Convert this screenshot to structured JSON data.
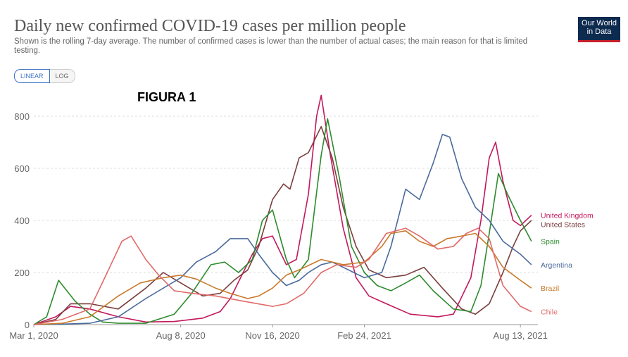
{
  "header": {
    "title": "Daily new confirmed COVID-19 cases per million people",
    "subtitle": "Shown is the rolling 7-day average. The number of confirmed cases is lower than the number of actual cases; the main reason for that is limited testing.",
    "logo_line1": "Our World",
    "logo_line2": "in Data"
  },
  "scale_toggle": {
    "linear_label": "LINEAR",
    "log_label": "LOG",
    "selected": "LINEAR"
  },
  "annotation": "FIGURA 1",
  "chart_data": {
    "type": "line",
    "title": "Daily new confirmed COVID-19 cases per million people",
    "xlabel": "",
    "ylabel": "",
    "ylim": [
      0,
      800
    ],
    "y_ticks": [
      0,
      200,
      400,
      600,
      800
    ],
    "x_tick_labels": [
      "Mar 1, 2020",
      "Aug 8, 2020",
      "Nov 16, 2020",
      "Feb 24, 2021",
      "Aug 13, 2021"
    ],
    "x_tick_dates": [
      "2020-03-01",
      "2020-08-08",
      "2020-11-16",
      "2021-02-24",
      "2021-08-13"
    ],
    "xlim": [
      "2020-03-01",
      "2021-09-01"
    ],
    "grid": "horizontal dashed",
    "legend": "right, labels at line ends",
    "series": [
      {
        "name": "United Kingdom",
        "color": "#c2185b",
        "dates": [
          "2020-03-01",
          "2020-03-25",
          "2020-04-10",
          "2020-05-01",
          "2020-06-01",
          "2020-07-01",
          "2020-08-01",
          "2020-09-01",
          "2020-09-20",
          "2020-10-01",
          "2020-10-15",
          "2020-10-25",
          "2020-11-05",
          "2020-11-16",
          "2020-12-01",
          "2020-12-12",
          "2020-12-25",
          "2021-01-03",
          "2021-01-08",
          "2021-01-18",
          "2021-02-01",
          "2021-02-15",
          "2021-03-01",
          "2021-03-20",
          "2021-04-15",
          "2021-05-15",
          "2021-06-01",
          "2021-06-20",
          "2021-07-01",
          "2021-07-10",
          "2021-07-17",
          "2021-07-25",
          "2021-08-05",
          "2021-08-13",
          "2021-08-25"
        ],
        "values": [
          0,
          30,
          70,
          60,
          30,
          10,
          12,
          25,
          50,
          100,
          200,
          270,
          330,
          340,
          230,
          250,
          500,
          800,
          880,
          650,
          370,
          180,
          110,
          80,
          40,
          30,
          40,
          180,
          400,
          640,
          700,
          550,
          400,
          380,
          420
        ]
      },
      {
        "name": "United States",
        "color": "#7b3e3e",
        "dates": [
          "2020-03-01",
          "2020-03-25",
          "2020-04-10",
          "2020-05-01",
          "2020-06-01",
          "2020-07-01",
          "2020-07-20",
          "2020-08-08",
          "2020-09-01",
          "2020-09-20",
          "2020-10-05",
          "2020-10-20",
          "2020-11-01",
          "2020-11-16",
          "2020-11-28",
          "2020-12-05",
          "2020-12-15",
          "2020-12-25",
          "2021-01-08",
          "2021-01-20",
          "2021-02-01",
          "2021-02-15",
          "2021-03-01",
          "2021-03-20",
          "2021-04-10",
          "2021-04-30",
          "2021-05-20",
          "2021-06-10",
          "2021-06-25",
          "2021-07-10",
          "2021-07-25",
          "2021-08-05",
          "2021-08-13",
          "2021-08-25"
        ],
        "values": [
          0,
          20,
          80,
          80,
          60,
          140,
          200,
          160,
          110,
          120,
          170,
          210,
          300,
          480,
          540,
          520,
          640,
          660,
          760,
          640,
          450,
          300,
          210,
          180,
          190,
          220,
          140,
          60,
          40,
          80,
          200,
          300,
          360,
          400
        ]
      },
      {
        "name": "Spain",
        "color": "#2e8b2e",
        "dates": [
          "2020-03-01",
          "2020-03-15",
          "2020-03-28",
          "2020-04-15",
          "2020-05-01",
          "2020-05-15",
          "2020-06-01",
          "2020-07-01",
          "2020-08-01",
          "2020-08-20",
          "2020-09-10",
          "2020-09-25",
          "2020-10-10",
          "2020-10-25",
          "2020-11-05",
          "2020-11-16",
          "2020-12-01",
          "2020-12-10",
          "2020-12-25",
          "2021-01-08",
          "2021-01-15",
          "2021-01-28",
          "2021-02-10",
          "2021-02-24",
          "2021-03-10",
          "2021-03-25",
          "2021-04-10",
          "2021-04-25",
          "2021-05-10",
          "2021-06-01",
          "2021-06-20",
          "2021-07-01",
          "2021-07-10",
          "2021-07-20",
          "2021-07-30",
          "2021-08-13",
          "2021-08-25"
        ],
        "values": [
          0,
          30,
          170,
          90,
          40,
          10,
          5,
          5,
          40,
          120,
          230,
          240,
          200,
          250,
          400,
          440,
          250,
          180,
          250,
          650,
          790,
          560,
          300,
          200,
          150,
          130,
          160,
          190,
          130,
          60,
          50,
          150,
          350,
          580,
          500,
          400,
          320
        ]
      },
      {
        "name": "Argentina",
        "color": "#4a6a9c",
        "dates": [
          "2020-03-01",
          "2020-04-01",
          "2020-05-01",
          "2020-06-01",
          "2020-07-01",
          "2020-08-08",
          "2020-08-25",
          "2020-09-15",
          "2020-10-01",
          "2020-10-20",
          "2020-11-01",
          "2020-11-16",
          "2020-12-01",
          "2020-12-15",
          "2020-12-25",
          "2021-01-08",
          "2021-01-20",
          "2021-02-01",
          "2021-02-24",
          "2021-03-15",
          "2021-03-25",
          "2021-04-10",
          "2021-04-25",
          "2021-05-10",
          "2021-05-20",
          "2021-05-28",
          "2021-06-10",
          "2021-06-25",
          "2021-07-10",
          "2021-07-25",
          "2021-08-13",
          "2021-08-25"
        ],
        "values": [
          0,
          2,
          5,
          30,
          100,
          180,
          240,
          280,
          330,
          330,
          270,
          200,
          150,
          170,
          200,
          230,
          240,
          220,
          180,
          200,
          300,
          520,
          480,
          620,
          730,
          720,
          560,
          450,
          400,
          320,
          270,
          230
        ]
      },
      {
        "name": "Brazil",
        "color": "#c87a2a",
        "dates": [
          "2020-03-01",
          "2020-04-01",
          "2020-05-01",
          "2020-06-01",
          "2020-06-25",
          "2020-07-20",
          "2020-08-08",
          "2020-08-25",
          "2020-09-15",
          "2020-10-01",
          "2020-10-20",
          "2020-11-01",
          "2020-11-16",
          "2020-12-01",
          "2020-12-15",
          "2021-01-08",
          "2021-01-20",
          "2021-02-01",
          "2021-02-24",
          "2021-03-15",
          "2021-03-25",
          "2021-04-10",
          "2021-04-25",
          "2021-05-10",
          "2021-05-25",
          "2021-06-10",
          "2021-06-25",
          "2021-07-10",
          "2021-07-25",
          "2021-08-13",
          "2021-08-25"
        ],
        "values": [
          0,
          5,
          30,
          110,
          160,
          180,
          190,
          175,
          140,
          120,
          100,
          110,
          140,
          190,
          210,
          250,
          240,
          230,
          240,
          300,
          350,
          360,
          320,
          300,
          330,
          340,
          350,
          300,
          220,
          170,
          140
        ]
      },
      {
        "name": "Chile",
        "color": "#e06a6a",
        "dates": [
          "2020-03-01",
          "2020-04-01",
          "2020-05-01",
          "2020-05-20",
          "2020-06-05",
          "2020-06-15",
          "2020-07-01",
          "2020-07-15",
          "2020-08-01",
          "2020-08-20",
          "2020-09-15",
          "2020-10-15",
          "2020-11-16",
          "2020-12-01",
          "2020-12-20",
          "2021-01-08",
          "2021-01-25",
          "2021-02-15",
          "2021-03-01",
          "2021-03-20",
          "2021-04-10",
          "2021-04-25",
          "2021-05-15",
          "2021-06-01",
          "2021-06-15",
          "2021-06-28",
          "2021-07-10",
          "2021-07-25",
          "2021-08-13",
          "2021-08-25"
        ],
        "values": [
          0,
          20,
          60,
          200,
          320,
          340,
          250,
          190,
          130,
          120,
          110,
          90,
          70,
          80,
          120,
          200,
          230,
          220,
          250,
          350,
          370,
          340,
          290,
          300,
          350,
          370,
          330,
          150,
          70,
          50
        ]
      }
    ]
  }
}
